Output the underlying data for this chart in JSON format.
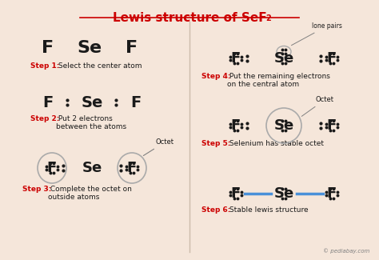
{
  "title": "Lewis structure of SeF",
  "title_sub": "2",
  "bg_color": "#f5e6da",
  "divider_color": "#ccbbaa",
  "red": "#cc0000",
  "black": "#1a1a1a",
  "dot_color": "#1a1a1a",
  "blue_bond": "#4a90d9",
  "circle_color": "#aaaaaa",
  "step1_label": "Step 1:",
  "step1_text": " Select the center atom",
  "step2_label": "Step 2:",
  "step2_text": " Put 2 electrons\nbetween the atoms",
  "step3_label": "Step 3:",
  "step3_text": " Complete the octet on\noutside atoms",
  "step4_label": "Step 4:",
  "step4_text": " Put the remaining electrons\non the central atom",
  "step5_label": "Step 5:",
  "step5_text": " Selenium has stable octet",
  "step6_label": "Step 6:",
  "step6_text": " Stable lewis structure",
  "watermark": "© pediabay.com"
}
